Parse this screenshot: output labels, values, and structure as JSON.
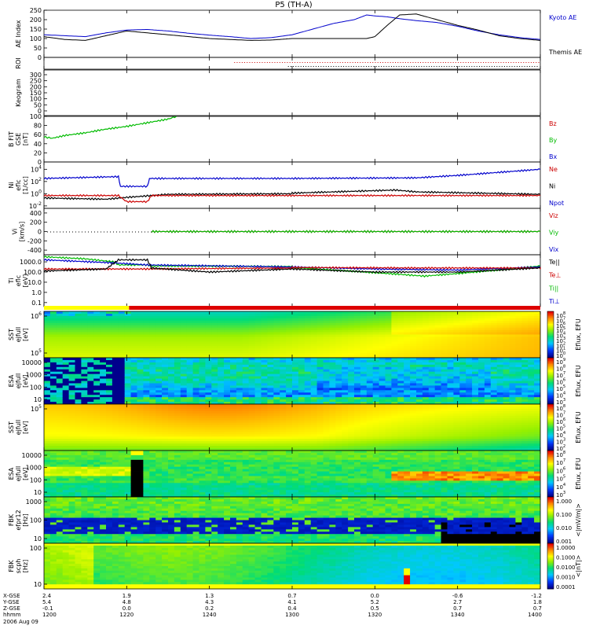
{
  "chart_data": {
    "type": "line",
    "title": "P5 (TH-A)",
    "date_label": "2006 Aug 09",
    "time": {
      "ticks": [
        "1200",
        "1220",
        "1240",
        "1300",
        "1320",
        "1340",
        "1400"
      ],
      "x_gse": [
        "2.4",
        "1.9",
        "1.3",
        "0.7",
        "0.0",
        "-0.6",
        "-1.2"
      ],
      "y_gse": [
        "5.4",
        "4.8",
        "4.3",
        "4.1",
        "5.2",
        "2.7",
        "1.8"
      ],
      "z_gse": [
        "-0.1",
        "0.0",
        "0.2",
        "0.4",
        "0.5",
        "0.7",
        "0.7"
      ],
      "row_labels": [
        "X-GSE",
        "Y-GSE",
        "Z-GSE",
        "hhmm"
      ]
    },
    "panels": [
      {
        "id": "ae",
        "ylabel": "AE Index",
        "yticks": [
          "250",
          "200",
          "150",
          "100",
          "50",
          "0"
        ],
        "ylim": [
          0,
          250
        ],
        "legend": [
          {
            "label": "Kyoto AE",
            "color": "#0000cc"
          },
          {
            "label": "Themis AE",
            "color": "#000000"
          }
        ],
        "series": [
          {
            "name": "Kyoto AE",
            "color": "#0000cc",
            "x": [
              1200,
              1205,
              1210,
              1215,
              1220,
              1225,
              1230,
              1235,
              1240,
              1245,
              1250,
              1255,
              1300,
              1305,
              1310,
              1315,
              1318,
              1320,
              1323,
              1326,
              1330,
              1335,
              1340,
              1345,
              1350,
              1355,
              1400
            ],
            "y": [
              120,
              115,
              110,
              130,
              145,
              148,
              140,
              128,
              118,
              110,
              100,
              105,
              120,
              150,
              180,
              200,
              225,
              220,
              215,
              205,
              195,
              185,
              165,
              140,
              120,
              105,
              95
            ]
          },
          {
            "name": "Themis AE",
            "color": "#000000",
            "x": [
              1200,
              1205,
              1210,
              1215,
              1220,
              1225,
              1230,
              1235,
              1240,
              1245,
              1250,
              1255,
              1300,
              1305,
              1310,
              1315,
              1318,
              1320,
              1323,
              1326,
              1330,
              1335,
              1340,
              1345,
              1350,
              1355,
              1400
            ],
            "y": [
              110,
              95,
              90,
              115,
              140,
              130,
              120,
              110,
              100,
              95,
              90,
              92,
              100,
              100,
              100,
              100,
              100,
              110,
              170,
              225,
              230,
              200,
              170,
              145,
              115,
              100,
              90
            ]
          }
        ]
      },
      {
        "id": "roi",
        "ylabel": "ROI"
      },
      {
        "id": "keogram",
        "ylabel": "Keogram",
        "yticks": [
          "300",
          "250",
          "200",
          "150",
          "100",
          "50",
          "0"
        ]
      },
      {
        "id": "bfit",
        "ylabel_lines": [
          "B FIT",
          "GSE",
          "[nT]"
        ],
        "yticks": [
          "100",
          "80",
          "60",
          "40",
          "20",
          "0"
        ],
        "ylim": [
          0,
          100
        ],
        "legend": [
          {
            "label": "Bz",
            "color": "#cc0000"
          },
          {
            "label": "By",
            "color": "#00bb00"
          },
          {
            "label": "Bx",
            "color": "#0000cc"
          }
        ],
        "series": [
          {
            "name": "By",
            "color": "#00bb00",
            "x": [
              1200,
              1202,
              1205,
              1210,
              1215,
              1220,
              1225,
              1230,
              1232
            ],
            "y": [
              55,
              52,
              58,
              64,
              72,
              78,
              86,
              94,
              100
            ]
          }
        ]
      },
      {
        "id": "ni",
        "ylabel_lines": [
          "Ni",
          "eflc",
          "[1/cc]"
        ],
        "yticks": [
          "10^4",
          "10^2",
          "10^0",
          "10^-2"
        ],
        "ylog": [
          -2.4,
          5.2
        ],
        "legend": [
          {
            "label": "Ne",
            "color": "#cc0000"
          },
          {
            "label": "Ni",
            "color": "#000000"
          },
          {
            "label": "Npot",
            "color": "#0000cc"
          }
        ],
        "series": [
          {
            "name": "Npot",
            "color": "#0000cc",
            "x": [
              1200,
              1218,
              1218.5,
              1225,
              1225.5,
              1300,
              1330,
              1340,
              1400
            ],
            "y": [
              2.5,
              2.8,
              1.2,
              1.2,
              2.5,
              2.5,
              2.6,
              3.0,
              4.0
            ]
          },
          {
            "name": "Ni",
            "color": "#000000",
            "x": [
              1200,
              1215,
              1220,
              1230,
              1260,
              1300,
              1315,
              1325,
              1330,
              1345,
              1400
            ],
            "y": [
              -0.7,
              -0.9,
              -0.6,
              -0.1,
              0.0,
              0.1,
              0.4,
              0.6,
              0.3,
              0.1,
              -0.1
            ]
          },
          {
            "name": "Ne",
            "color": "#cc0000",
            "x": [
              1200,
              1218,
              1220,
              1225,
              1226,
              1400
            ],
            "y": [
              -0.3,
              -0.3,
              -1.3,
              -1.3,
              -0.3,
              -0.3
            ]
          }
        ]
      },
      {
        "id": "vi",
        "ylabel_lines": [
          "Vi",
          "[km/s]"
        ],
        "yticks": [
          "400",
          "200",
          "0",
          "-200",
          "-400"
        ],
        "ylim": [
          -500,
          500
        ],
        "legend": [
          {
            "label": "Viz",
            "color": "#cc0000"
          },
          {
            "label": "Viy",
            "color": "#00bb00"
          },
          {
            "label": "Vix",
            "color": "#0000cc"
          }
        ],
        "series": [
          {
            "name": "Viz",
            "color": "#cc0000",
            "x": [
              1226,
              1400
            ],
            "y": [
              0,
              0
            ]
          },
          {
            "name": "Viy",
            "color": "#00bb00",
            "x": [
              1226,
              1400
            ],
            "y": [
              0,
              0
            ]
          }
        ]
      },
      {
        "id": "ti",
        "ylabel_lines": [
          "Ti",
          "eflc",
          "[eV]"
        ],
        "yticks": [
          "1000.0",
          "100.0",
          "10.0",
          "1.0",
          "0.1"
        ],
        "ylog": [
          -1.4,
          3.7
        ],
        "legend": [
          {
            "label": "Te||",
            "color": "#000000"
          },
          {
            "label": "Te⊥",
            "color": "#cc0000"
          },
          {
            "label": "Ti||",
            "color": "#00bb00"
          },
          {
            "label": "Ti⊥",
            "color": "#0000cc"
          }
        ],
        "series": [
          {
            "name": "Ti||",
            "color": "#00bb00",
            "x": [
              1200,
              1210,
              1217,
              1218,
              1225,
              1226,
              1260,
              1300,
              1310,
              1325,
              1332,
              1340,
              1350,
              1400
            ],
            "y": [
              3.5,
              3.3,
              3.0,
              2.7,
              2.7,
              2.6,
              2.55,
              2.45,
              2.2,
              1.8,
              1.6,
              1.85,
              2.2,
              2.6
            ]
          },
          {
            "name": "Ti⊥",
            "color": "#0000cc",
            "x": [
              1200,
              1217,
              1225,
              1300,
              1320,
              1340,
              1400
            ],
            "y": [
              3.2,
              2.9,
              2.7,
              2.5,
              2.3,
              2.2,
              2.5
            ]
          },
          {
            "name": "Te⊥",
            "color": "#cc0000",
            "x": [
              1200,
              1225,
              1260,
              1300,
              1330,
              1360,
              1400
            ],
            "y": [
              2.3,
              2.3,
              2.4,
              2.45,
              2.4,
              2.4,
              2.5
            ]
          },
          {
            "name": "Te||",
            "color": "#000000",
            "x": [
              1200,
              1215,
              1218,
              1225,
              1226,
              1240,
              1300,
              1320,
              1340,
              1400
            ],
            "y": [
              2.1,
              2.3,
              3.2,
              3.2,
              2.4,
              2.0,
              2.3,
              2.0,
              2.0,
              2.4
            ]
          }
        ]
      }
    ],
    "spectrograms": [
      {
        "id": "sst-e",
        "ylabel_lines": [
          "SST",
          "ejfull",
          "[eV]"
        ],
        "yticks": [
          "10^6",
          "10^5"
        ],
        "cbar_label": "Eflux, EFU",
        "cbar_ticks": [
          "10^8",
          "10^7",
          "10^6",
          "10^5",
          "10^4",
          "10^3",
          "10^2",
          "10^1",
          "10^0"
        ],
        "cmap": "sst_e"
      },
      {
        "id": "esa-e",
        "ylabel_lines": [
          "ESA",
          "ejfull",
          "[eV]"
        ],
        "yticks": [
          "10000",
          "1000",
          "100",
          "10"
        ],
        "cbar_label": "Eflux, EFU",
        "cbar_ticks": [
          "10^9",
          "10^8",
          "10^7",
          "10^6",
          "10^5",
          "10^4",
          "10^3"
        ],
        "cmap": "esa_e"
      },
      {
        "id": "sst-i",
        "ylabel_lines": [
          "SST",
          "ejfull",
          "[eV]"
        ],
        "yticks": [
          "10^5"
        ],
        "cbar_label": "Eflux, EFU",
        "cbar_ticks": [
          "10^8",
          "10^7",
          "10^6",
          "10^5",
          "10^4",
          "10^3",
          "10^2"
        ],
        "cmap": "sst_i"
      },
      {
        "id": "esa-i",
        "ylabel_lines": [
          "ESA",
          "ejfull",
          "[eV]"
        ],
        "yticks": [
          "10000",
          "1000",
          "100",
          "10"
        ],
        "cbar_label": "Eflux, EFU",
        "cbar_ticks": [
          "10^8",
          "10^7",
          "10^6",
          "10^5",
          "10^4",
          "10^3"
        ],
        "cmap": "esa_i"
      },
      {
        "id": "fbk-e",
        "ylabel_lines": [
          "FBK",
          "efpr12",
          "[Hz]"
        ],
        "yticks": [
          "1000",
          "100",
          "10"
        ],
        "cbar_label": "<|mV/m|>",
        "cbar_ticks": [
          "1.000",
          "0.100",
          "0.010",
          "0.001"
        ],
        "cmap": "fbk_e"
      },
      {
        "id": "fbk-b",
        "ylabel_lines": [
          "FBK",
          "scph",
          "[Hz]"
        ],
        "yticks": [
          "100",
          "10"
        ],
        "cbar_label": "<|nT|>",
        "cbar_ticks": [
          "1.0000",
          "0.1000",
          "0.0100",
          "0.0010",
          "0.0001"
        ],
        "cmap": "fbk_b"
      }
    ]
  }
}
